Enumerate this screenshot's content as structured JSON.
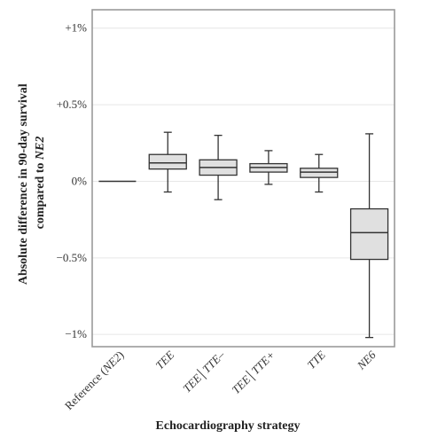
{
  "chart_data": {
    "type": "box",
    "xlabel": "Echocardiography strategy",
    "ylabel_line1": "Absolute difference in 90-day survival",
    "ylabel_line2_prefix": "compared to ",
    "ylabel_line2_italic": "NE2",
    "ylim": [
      -1.08,
      1.12
    ],
    "yticks": [
      {
        "value": 1,
        "label": "+1%"
      },
      {
        "value": 0.5,
        "label": "+0.5%"
      },
      {
        "value": 0,
        "label": "0%"
      },
      {
        "value": -0.5,
        "label": "−0.5%"
      },
      {
        "value": -1,
        "label": "−1%"
      }
    ],
    "grid": true,
    "box_color": "#e0e0e0",
    "line_color": "#333333",
    "categories": [
      {
        "name": "Reference (",
        "name_italic": "NE2",
        "name_suffix": ")",
        "min": 0,
        "q1": 0,
        "median": 0,
        "q3": 0,
        "max": 0
      },
      {
        "name": "",
        "name_italic": "TEE",
        "name_suffix": "",
        "min": -0.07,
        "q1": 0.08,
        "median": 0.12,
        "q3": 0.175,
        "max": 0.32
      },
      {
        "name": "",
        "name_italic": "TEE│TTE–",
        "name_suffix": "",
        "min": -0.12,
        "q1": 0.04,
        "median": 0.09,
        "q3": 0.14,
        "max": 0.3
      },
      {
        "name": "",
        "name_italic": "TEE│TTE+",
        "name_suffix": "",
        "min": -0.02,
        "q1": 0.06,
        "median": 0.09,
        "q3": 0.115,
        "max": 0.2
      },
      {
        "name": "",
        "name_italic": "TTE",
        "name_suffix": "",
        "min": -0.07,
        "q1": 0.025,
        "median": 0.06,
        "q3": 0.085,
        "max": 0.175
      },
      {
        "name": "",
        "name_italic": "NE6",
        "name_suffix": "",
        "min": -1.02,
        "q1": -0.51,
        "median": -0.335,
        "q3": -0.18,
        "max": 0.31
      }
    ]
  }
}
